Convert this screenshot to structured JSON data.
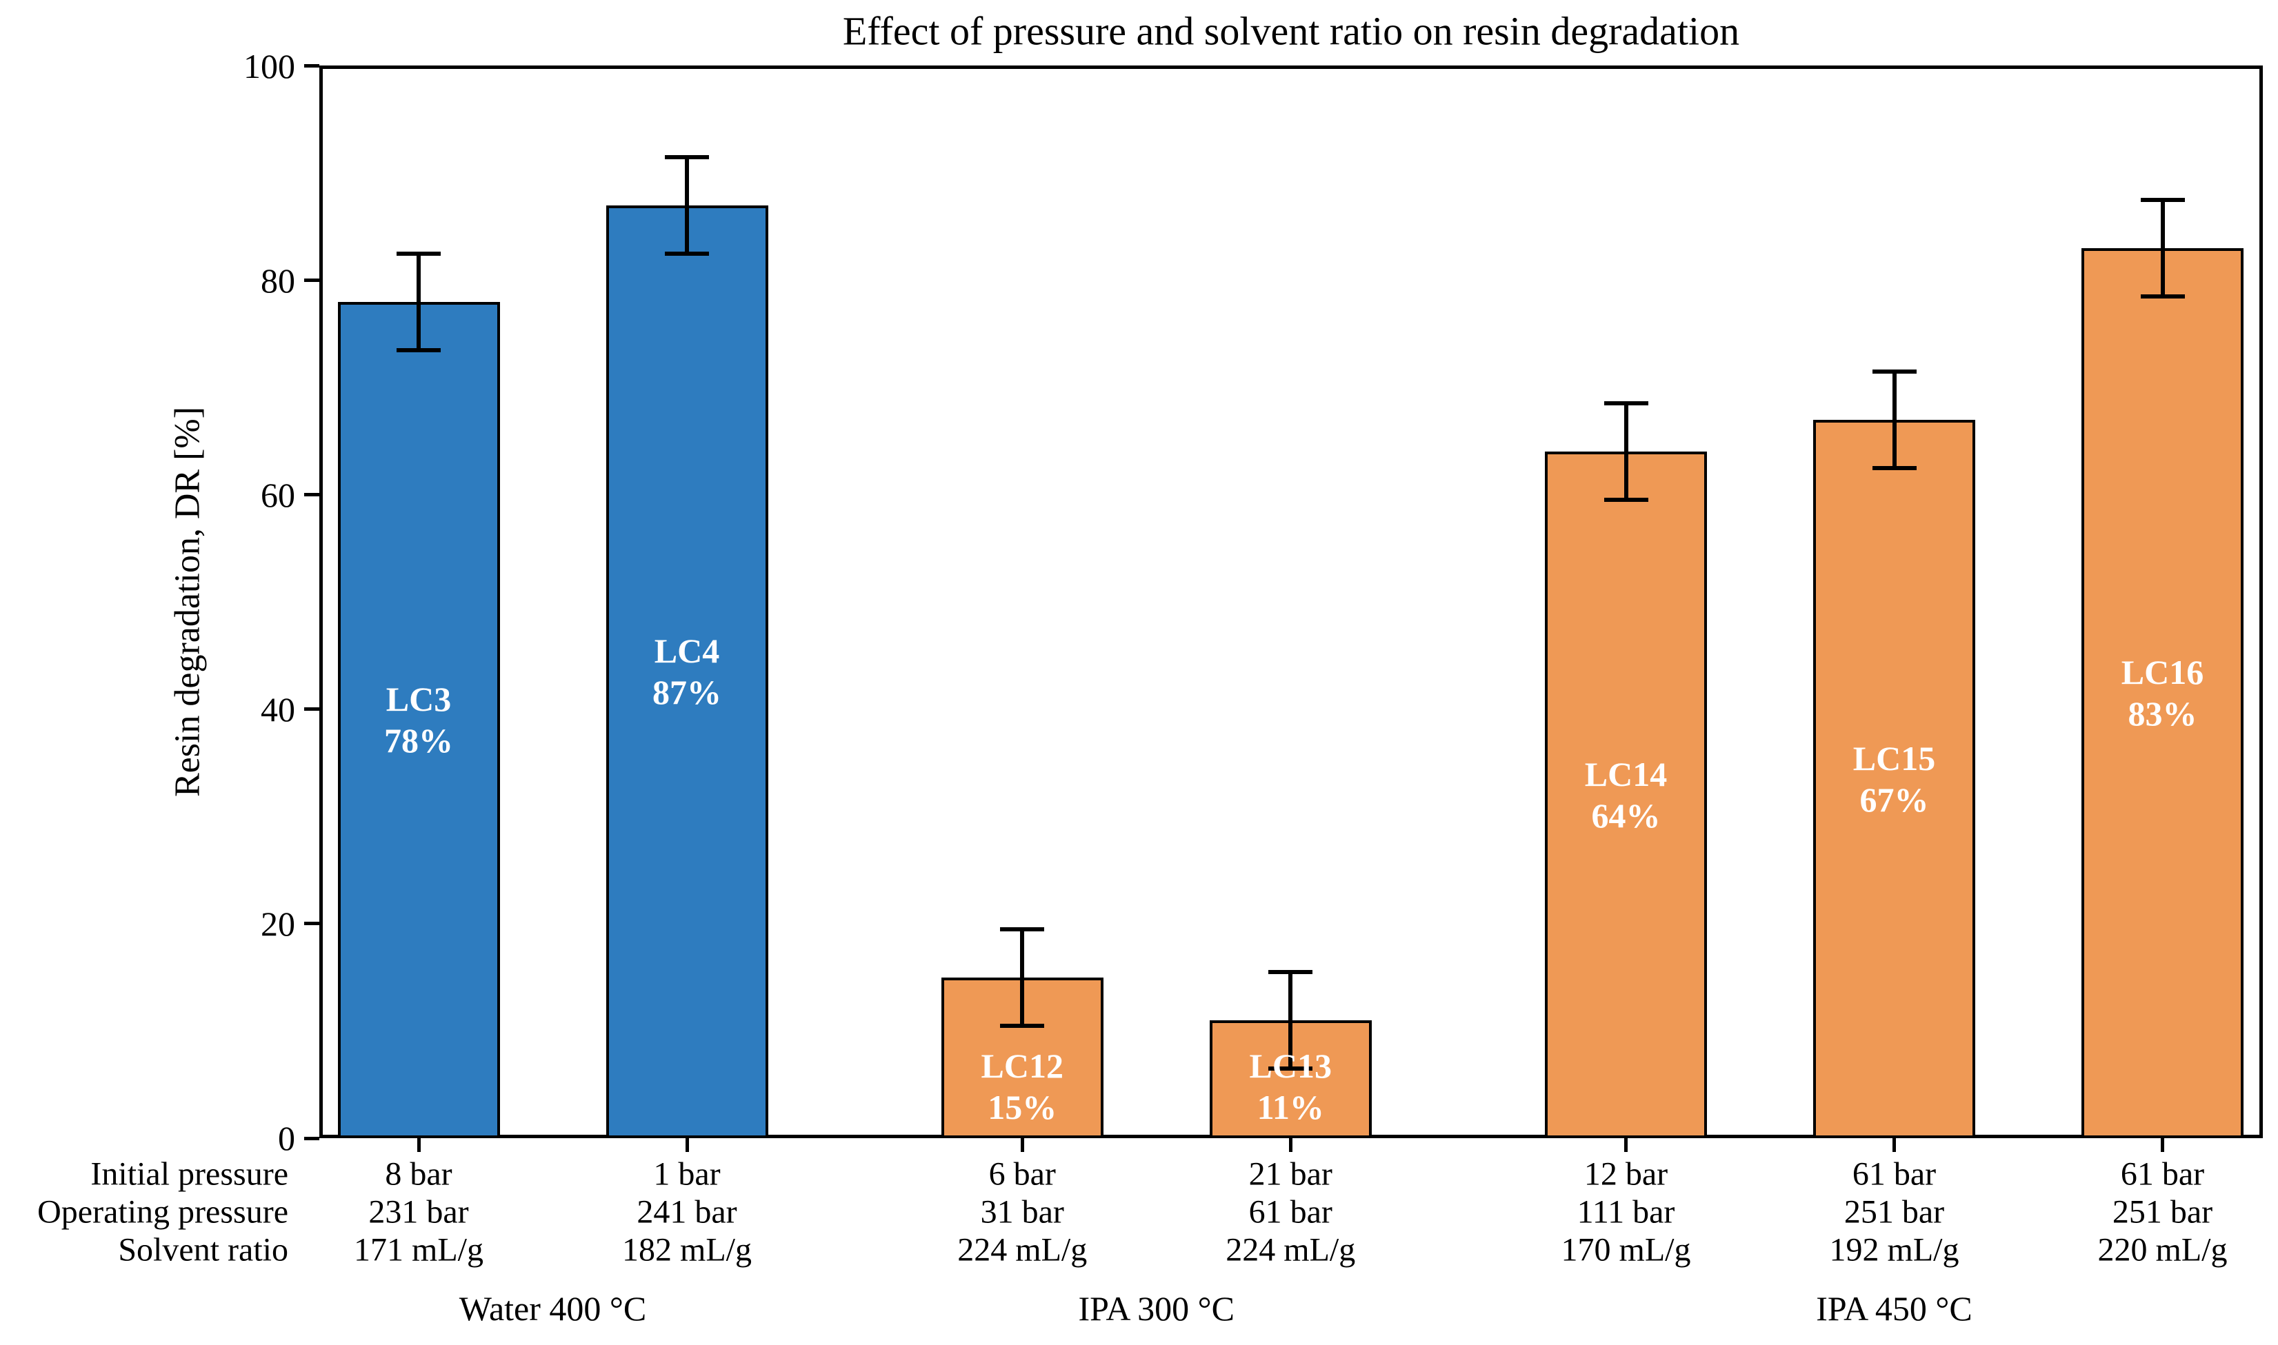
{
  "chart_data": {
    "type": "bar",
    "title": "Effect of pressure and solvent ratio on resin degradation",
    "ylabel": "Resin degradation, DR [%]",
    "xlabel": "",
    "ylim": [
      0,
      100
    ],
    "yticks": [
      0,
      20,
      40,
      60,
      80,
      100
    ],
    "grid": false,
    "legend": null,
    "bar_width_ratio": 0.6,
    "categories": [
      "LC3",
      "LC4",
      "LC12",
      "LC13",
      "LC14",
      "LC15",
      "LC16"
    ],
    "values": [
      78,
      87,
      15,
      11,
      64,
      67,
      83
    ],
    "errors": [
      4.5,
      4.5,
      4.5,
      4.5,
      4.5,
      4.5,
      4.5
    ],
    "bars": [
      {
        "id": "LC3",
        "value": 78,
        "value_label": "78%",
        "error": 4.5,
        "color_key": "blue",
        "x_unit": 0,
        "initial_pressure": "8 bar",
        "operating_pressure": "231 bar",
        "solvent_ratio": "171 mL/g"
      },
      {
        "id": "LC4",
        "value": 87,
        "value_label": "87%",
        "error": 4.5,
        "color_key": "blue",
        "x_unit": 1,
        "initial_pressure": "1 bar",
        "operating_pressure": "241 bar",
        "solvent_ratio": "182 mL/g"
      },
      {
        "id": "LC12",
        "value": 15,
        "value_label": "15%",
        "error": 4.5,
        "color_key": "orange",
        "x_unit": 2.25,
        "initial_pressure": "6 bar",
        "operating_pressure": "31 bar",
        "solvent_ratio": "224 mL/g"
      },
      {
        "id": "LC13",
        "value": 11,
        "value_label": "11%",
        "error": 4.5,
        "color_key": "orange",
        "x_unit": 3.25,
        "initial_pressure": "21 bar",
        "operating_pressure": "61 bar",
        "solvent_ratio": "224 mL/g"
      },
      {
        "id": "LC14",
        "value": 64,
        "value_label": "64%",
        "error": 4.5,
        "color_key": "orange",
        "x_unit": 4.5,
        "initial_pressure": "12 bar",
        "operating_pressure": "111 bar",
        "solvent_ratio": "170 mL/g"
      },
      {
        "id": "LC15",
        "value": 67,
        "value_label": "67%",
        "error": 4.5,
        "color_key": "orange",
        "x_unit": 5.5,
        "initial_pressure": "61 bar",
        "operating_pressure": "251 bar",
        "solvent_ratio": "192 mL/g"
      },
      {
        "id": "LC16",
        "value": 83,
        "value_label": "83%",
        "error": 4.5,
        "color_key": "orange",
        "x_unit": 6.5,
        "initial_pressure": "61 bar",
        "operating_pressure": "251 bar",
        "solvent_ratio": "220 mL/g"
      }
    ],
    "annotation_row_labels": [
      "Initial pressure",
      "Operating pressure",
      "Solvent ratio"
    ],
    "groups": [
      {
        "label": "Water 400 °C",
        "x_unit": 0.5
      },
      {
        "label": "IPA 300 °C",
        "x_unit": 2.75
      },
      {
        "label": "IPA 450 °C",
        "x_unit": 5.5
      }
    ],
    "colors": {
      "blue": "#2E7CBF",
      "orange": "#EF9955",
      "edge": "#000000",
      "error_bar": "#000000",
      "bar_label_text": "#FFFFFF",
      "axis": "#000000",
      "background": "#FFFFFF"
    }
  }
}
